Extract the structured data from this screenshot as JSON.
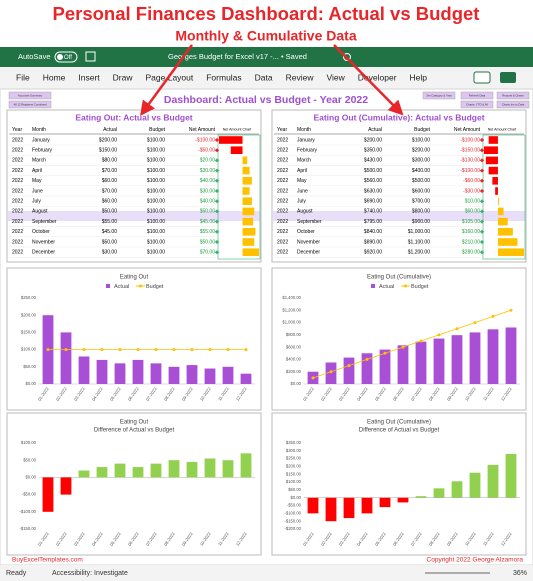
{
  "annotation": {
    "title": "Personal Finances Dashboard: Actual vs Budget",
    "subtitle": "Monthly & Cumulative Data"
  },
  "excel": {
    "autosave": "AutoSave",
    "toggle": "Off",
    "filename": "Georges Budget for Excel v17 -... • Saved",
    "tabs": [
      "File",
      "Home",
      "Insert",
      "Draw",
      "Page Layout",
      "Formulas",
      "Data",
      "Review",
      "View",
      "Developer",
      "Help"
    ],
    "status": {
      "ready": "Ready",
      "accessibility": "Accessibility: Investigate",
      "zoom": "36%"
    }
  },
  "sheet": {
    "buttons_left": [
      "Accounts Summary",
      "All 12 Registers Combined"
    ],
    "buttons_right": [
      "Set Category & Year",
      "Refresh Data",
      "Reports & Charts",
      "Charts: YTD & All",
      "Charts Ins to Date"
    ],
    "dashboard_title": "Dashboard: Actual vs Budget - Year 2022",
    "footer_left": "BuyExcelTemplates.com",
    "footer_right": "Copyright 2022  George Alzamora"
  },
  "tables": [
    {
      "title": "Eating Out: Actual vs Budget",
      "headers": [
        "Year",
        "Month",
        "Actual",
        "Budget",
        "Net Amount",
        "Net Amount Chart"
      ],
      "rows": [
        [
          "2022",
          "January",
          "$200.00",
          "$100.00",
          "-$100.00"
        ],
        [
          "2022",
          "February",
          "$150.00",
          "$100.00",
          "-$50.00"
        ],
        [
          "2022",
          "March",
          "$80.00",
          "$100.00",
          "$20.00"
        ],
        [
          "2022",
          "April",
          "$70.00",
          "$100.00",
          "$30.00"
        ],
        [
          "2022",
          "May",
          "$60.00",
          "$100.00",
          "$40.00"
        ],
        [
          "2022",
          "June",
          "$70.00",
          "$100.00",
          "$30.00"
        ],
        [
          "2022",
          "July",
          "$60.00",
          "$100.00",
          "$40.00"
        ],
        [
          "2022",
          "August",
          "$50.00",
          "$100.00",
          "$50.00"
        ],
        [
          "2022",
          "September",
          "$55.00",
          "$100.00",
          "$45.00"
        ],
        [
          "2022",
          "October",
          "$45.00",
          "$100.00",
          "$55.00"
        ],
        [
          "2022",
          "November",
          "$50.00",
          "$100.00",
          "$50.00"
        ],
        [
          "2022",
          "December",
          "$30.00",
          "$100.00",
          "$70.00"
        ]
      ],
      "net_values": [
        -100,
        -50,
        20,
        30,
        40,
        30,
        40,
        50,
        45,
        55,
        50,
        70
      ]
    },
    {
      "title": "Eating Out (Cumulative): Actual vs Budget",
      "headers": [
        "Year",
        "Month",
        "Actual",
        "Budget",
        "Net Amount",
        "Net Amount Chart"
      ],
      "rows": [
        [
          "2022",
          "January",
          "$200.00",
          "$100.00",
          "-$100.00"
        ],
        [
          "2022",
          "February",
          "$350.00",
          "$200.00",
          "-$150.00"
        ],
        [
          "2022",
          "March",
          "$430.00",
          "$300.00",
          "-$130.00"
        ],
        [
          "2022",
          "April",
          "$500.00",
          "$400.00",
          "-$100.00"
        ],
        [
          "2022",
          "May",
          "$560.00",
          "$500.00",
          "-$60.00"
        ],
        [
          "2022",
          "June",
          "$630.00",
          "$600.00",
          "-$30.00"
        ],
        [
          "2022",
          "July",
          "$690.00",
          "$700.00",
          "$10.00"
        ],
        [
          "2022",
          "August",
          "$740.00",
          "$800.00",
          "$60.00"
        ],
        [
          "2022",
          "September",
          "$795.00",
          "$900.00",
          "$105.00"
        ],
        [
          "2022",
          "October",
          "$840.00",
          "$1,000.00",
          "$160.00"
        ],
        [
          "2022",
          "November",
          "$890.00",
          "$1,100.00",
          "$210.00"
        ],
        [
          "2022",
          "December",
          "$920.00",
          "$1,200.00",
          "$280.00"
        ]
      ],
      "net_values": [
        -100,
        -150,
        -130,
        -100,
        -60,
        -30,
        10,
        60,
        105,
        160,
        210,
        280
      ]
    }
  ],
  "charts": [
    {
      "type": "bar",
      "title": "Eating Out",
      "categories": [
        "01-2022",
        "02-2022",
        "03-2022",
        "04-2022",
        "05-2022",
        "06-2022",
        "07-2022",
        "08-2022",
        "09-2022",
        "10-2022",
        "11-2022",
        "12-2022"
      ],
      "series": [
        {
          "name": "Actual",
          "type": "bar",
          "color": "#a94fd6",
          "values": [
            200,
            150,
            80,
            70,
            60,
            70,
            60,
            50,
            55,
            45,
            50,
            30
          ]
        },
        {
          "name": "Budget",
          "type": "line",
          "color": "#ffc000",
          "values": [
            100,
            100,
            100,
            100,
            100,
            100,
            100,
            100,
            100,
            100,
            100,
            100
          ]
        }
      ],
      "ylim": [
        0,
        250
      ],
      "yticks": [
        {
          "value": 0,
          "label": "$0.00"
        },
        {
          "value": 50,
          "label": "$50.00"
        },
        {
          "value": 100,
          "label": "$100.00"
        },
        {
          "value": 150,
          "label": "$150.00"
        },
        {
          "value": 200,
          "label": "$200.00"
        },
        {
          "value": 250,
          "label": "$250.00"
        }
      ],
      "grid": false,
      "legend": "top"
    },
    {
      "type": "bar",
      "title": "Eating Out (Cumulative)",
      "categories": [
        "01-2022",
        "02-2022",
        "03-2022",
        "04-2022",
        "05-2022",
        "06-2022",
        "07-2022",
        "08-2022",
        "09-2022",
        "10-2022",
        "11-2022",
        "12-2022"
      ],
      "series": [
        {
          "name": "Actual",
          "type": "bar",
          "color": "#a94fd6",
          "values": [
            200,
            350,
            430,
            500,
            560,
            630,
            690,
            740,
            795,
            840,
            890,
            920
          ]
        },
        {
          "name": "Budget",
          "type": "line",
          "color": "#ffc000",
          "values": [
            100,
            200,
            300,
            400,
            500,
            600,
            700,
            800,
            900,
            1000,
            1100,
            1200
          ]
        }
      ],
      "ylim": [
        0,
        1400
      ],
      "yticks": [
        {
          "value": 0,
          "label": "$0.00"
        },
        {
          "value": 200,
          "label": "$200.00"
        },
        {
          "value": 400,
          "label": "$400.00"
        },
        {
          "value": 600,
          "label": "$600.00"
        },
        {
          "value": 800,
          "label": "$800.00"
        },
        {
          "value": 1000,
          "label": "$1,000.00"
        },
        {
          "value": 1200,
          "label": "$1,200.00"
        },
        {
          "value": 1400,
          "label": "$1,400.00"
        }
      ],
      "grid": false,
      "legend": "top"
    },
    {
      "type": "bar",
      "title": "Eating Out",
      "subtitle": "Difference of Actual vs Budget",
      "categories": [
        "01-2022",
        "02-2022",
        "03-2022",
        "04-2022",
        "05-2022",
        "06-2022",
        "07-2022",
        "08-2022",
        "09-2022",
        "10-2022",
        "11-2022",
        "12-2022"
      ],
      "series": [
        {
          "type": "bar",
          "color": "#92d050",
          "negative_color": "#ff0000",
          "values": [
            -100,
            -50,
            20,
            30,
            40,
            30,
            40,
            50,
            45,
            55,
            50,
            70
          ]
        }
      ],
      "ylim": [
        -150,
        100
      ],
      "yticks": [
        {
          "value": -150,
          "label": "-$150.00"
        },
        {
          "value": -100,
          "label": "-$100.00"
        },
        {
          "value": -50,
          "label": "-$50.00"
        },
        {
          "value": 0,
          "label": "$0.00"
        },
        {
          "value": 50,
          "label": "$50.00"
        },
        {
          "value": 100,
          "label": "$100.00"
        }
      ],
      "grid": false
    },
    {
      "type": "bar",
      "title": "Eating Out (Cumulative)",
      "subtitle": "Difference of Actual vs Budget",
      "categories": [
        "01-2022",
        "02-2022",
        "03-2022",
        "04-2022",
        "05-2022",
        "06-2022",
        "07-2022",
        "08-2022",
        "09-2022",
        "10-2022",
        "11-2022",
        "12-2022"
      ],
      "series": [
        {
          "type": "bar",
          "color": "#92d050",
          "negative_color": "#ff0000",
          "values": [
            -100,
            -150,
            -130,
            -100,
            -60,
            -30,
            10,
            60,
            105,
            160,
            210,
            280
          ]
        }
      ],
      "ylim": [
        -200,
        350
      ],
      "yticks": [
        {
          "value": -200,
          "label": "-$200.00"
        },
        {
          "value": -150,
          "label": "-$150.00"
        },
        {
          "value": -100,
          "label": "-$100.00"
        },
        {
          "value": -50,
          "label": "-$50.00"
        },
        {
          "value": 0,
          "label": "$0.00"
        },
        {
          "value": 50,
          "label": "$50.00"
        },
        {
          "value": 100,
          "label": "$100.00"
        },
        {
          "value": 150,
          "label": "$150.00"
        },
        {
          "value": 200,
          "label": "$200.00"
        },
        {
          "value": 250,
          "label": "$250.00"
        },
        {
          "value": 300,
          "label": "$300.00"
        },
        {
          "value": 350,
          "label": "$350.00"
        }
      ],
      "grid": false
    }
  ]
}
